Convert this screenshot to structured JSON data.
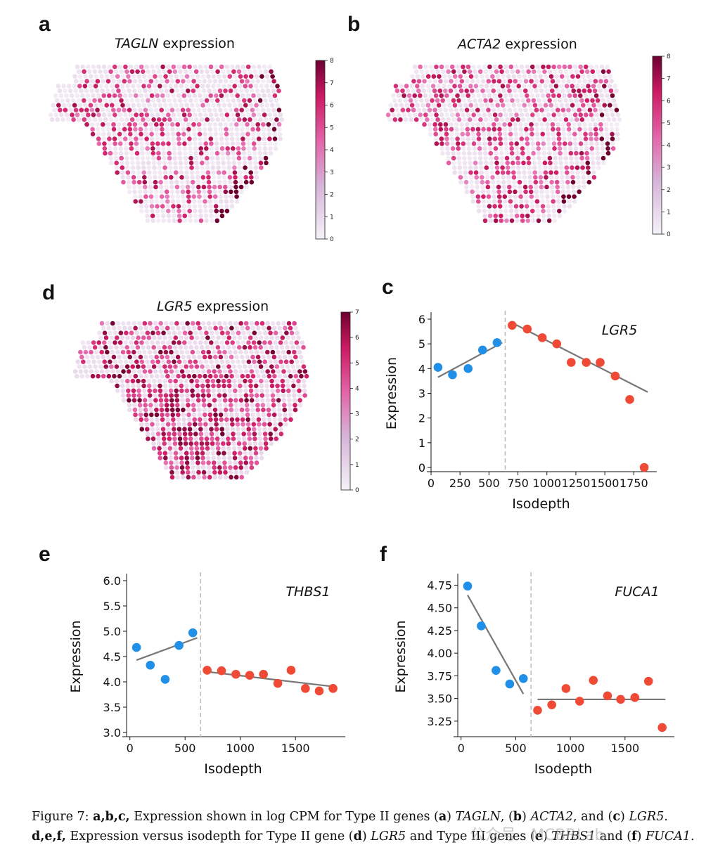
{
  "panels": {
    "a": {
      "letter": "a",
      "gene": "TAGLN",
      "suffix": " expression",
      "cb_ticks": [
        "8",
        "7",
        "6",
        "5",
        "4",
        "3",
        "2",
        "1",
        "0"
      ]
    },
    "b": {
      "letter": "b",
      "gene": "ACTA2",
      "suffix": " expression",
      "cb_ticks": [
        "8",
        "7",
        "6",
        "5",
        "4",
        "3",
        "2",
        "1",
        "0"
      ]
    },
    "d": {
      "letter": "d",
      "gene": "LGR5",
      "suffix": " expression",
      "cb_ticks": [
        "7",
        "6",
        "5",
        "4",
        "3",
        "2",
        "1",
        "0"
      ]
    },
    "c": {
      "letter": "c"
    },
    "e": {
      "letter": "e"
    },
    "f": {
      "letter": "f"
    }
  },
  "colors": {
    "blue": "#1f8fe8",
    "red": "#ef4a36",
    "line": "#777777",
    "dash": "#bbbbbb",
    "cmap_low": "#f3eef6",
    "cmap_mid": "#cf5ba0",
    "cmap_high": "#6d0130"
  },
  "chart_data": [
    {
      "id": "c",
      "type": "scatter",
      "title": "LGR5",
      "xlabel": "Isodepth",
      "ylabel": "Expression",
      "xlim": [
        0,
        1900
      ],
      "ylim": [
        0,
        6
      ],
      "xticks": [
        0,
        250,
        500,
        750,
        1000,
        1250,
        1500,
        1750
      ],
      "yticks": [
        0,
        1,
        2,
        3,
        4,
        5,
        6
      ],
      "ytick_labels": [
        "0",
        "1",
        "2",
        "3",
        "4",
        "5",
        "6"
      ],
      "breakpoint": 640,
      "series": [
        {
          "name": "blue",
          "x": [
            60,
            185,
            320,
            445,
            570
          ],
          "y": [
            4.05,
            3.75,
            4.0,
            4.75,
            5.05
          ]
        },
        {
          "name": "red",
          "x": [
            700,
            830,
            960,
            1085,
            1210,
            1340,
            1460,
            1590,
            1715,
            1840
          ],
          "y": [
            5.75,
            5.6,
            5.25,
            5.0,
            4.25,
            4.25,
            4.25,
            3.7,
            2.75,
            0.0
          ]
        }
      ],
      "fit_lines": [
        {
          "x": [
            60,
            615
          ],
          "y": [
            3.65,
            5.05
          ]
        },
        {
          "x": [
            700,
            1870
          ],
          "y": [
            5.85,
            3.05
          ]
        }
      ]
    },
    {
      "id": "e",
      "type": "scatter",
      "title": "THBS1",
      "xlabel": "Isodepth",
      "ylabel": "Expression",
      "xlim": [
        -30,
        1900
      ],
      "ylim": [
        3.0,
        6.0
      ],
      "xticks": [
        0,
        500,
        1000,
        1500
      ],
      "yticks": [
        3.0,
        3.5,
        4.0,
        4.5,
        5.0,
        5.5,
        6.0
      ],
      "ytick_labels": [
        "3.0",
        "3.5",
        "4.0",
        "4.5",
        "5.0",
        "5.5",
        "6.0"
      ],
      "breakpoint": 640,
      "series": [
        {
          "name": "blue",
          "x": [
            60,
            185,
            320,
            445,
            570
          ],
          "y": [
            4.68,
            4.33,
            4.05,
            4.72,
            4.97
          ]
        },
        {
          "name": "red",
          "x": [
            700,
            830,
            960,
            1085,
            1210,
            1340,
            1460,
            1590,
            1715,
            1840
          ],
          "y": [
            4.23,
            4.22,
            4.15,
            4.13,
            4.15,
            3.97,
            4.23,
            3.87,
            3.82,
            3.87
          ]
        }
      ],
      "fit_lines": [
        {
          "x": [
            60,
            610
          ],
          "y": [
            4.43,
            4.87
          ]
        },
        {
          "x": [
            700,
            1870
          ],
          "y": [
            4.2,
            3.9
          ]
        }
      ]
    },
    {
      "id": "f",
      "type": "scatter",
      "title": "FUCA1",
      "xlabel": "Isodepth",
      "ylabel": "Expression",
      "xlim": [
        -30,
        1900
      ],
      "ylim": [
        3.125,
        4.8
      ],
      "xticks": [
        0,
        500,
        1000,
        1500
      ],
      "yticks": [
        3.25,
        3.5,
        3.75,
        4.0,
        4.25,
        4.5,
        4.75
      ],
      "ytick_labels": [
        "3.25",
        "3.50",
        "3.75",
        "4.00",
        "4.25",
        "4.50",
        "4.75"
      ],
      "breakpoint": 640,
      "series": [
        {
          "name": "blue",
          "x": [
            60,
            185,
            320,
            445,
            570
          ],
          "y": [
            4.74,
            4.3,
            3.81,
            3.66,
            3.72
          ]
        },
        {
          "name": "red",
          "x": [
            700,
            830,
            960,
            1085,
            1210,
            1340,
            1460,
            1590,
            1715,
            1840
          ],
          "y": [
            3.37,
            3.43,
            3.61,
            3.47,
            3.7,
            3.53,
            3.49,
            3.51,
            3.69,
            3.18
          ]
        }
      ],
      "fit_lines": [
        {
          "x": [
            60,
            570
          ],
          "y": [
            4.64,
            3.55
          ]
        },
        {
          "x": [
            700,
            1870
          ],
          "y": [
            3.49,
            3.49
          ]
        }
      ]
    }
  ],
  "caption": {
    "label": "Figure 7:",
    "l1": "a,b,c,",
    "t1": " Expression shown in log CPM for Type II genes (",
    "l2": "a",
    "t2": ") ",
    "g1": "TAGLN",
    "t3": ", (",
    "l3": "b",
    "t4": ") ",
    "g2": "ACTA2",
    "t5": ", and (",
    "l4": "c",
    "t6": ") ",
    "g3": "LGR5",
    "t7": ". ",
    "l5": "d,e,f,",
    "t8": " Expression versus isodepth for Type II gene (",
    "l6": "d",
    "t9": ") ",
    "g4": "LGR5",
    "t10": " and Type III genes (",
    "l7": "e",
    "t11": ") ",
    "g5": "THBS1",
    "t12": " and (",
    "l8": "f",
    "t13": ") ",
    "g6": "FUCA1",
    "t14": "."
  },
  "watermark": "公众号 · MCBRLab"
}
